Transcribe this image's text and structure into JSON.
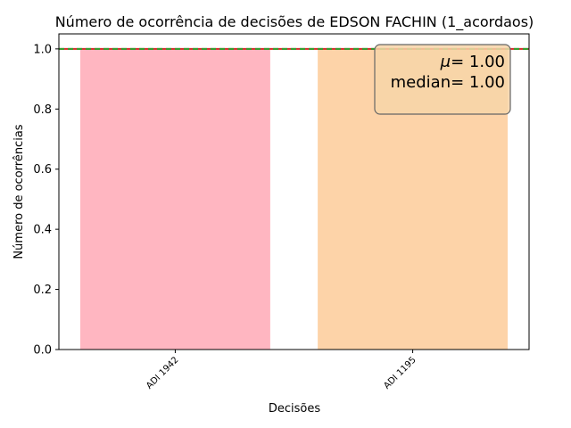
{
  "chart_data": {
    "type": "bar",
    "title": "Número de ocorrência de decisões de EDSON FACHIN (1_acordaos)",
    "xlabel": "Decisões",
    "ylabel": "Número de ocorrências",
    "categories": [
      "ADI 1942",
      "ADI 1195"
    ],
    "values": [
      1,
      1
    ],
    "bar_colors": [
      "#ffb6c1",
      "#fdd3a8"
    ],
    "ylim": [
      0,
      1.05
    ],
    "yticks": [
      "0.0",
      "0.2",
      "0.4",
      "0.6",
      "0.8",
      "1.0"
    ],
    "ytick_values": [
      0,
      0.2,
      0.4,
      0.6,
      0.8,
      1.0
    ],
    "mean": 1.0,
    "median": 1.0,
    "mean_line_color": "#d62728",
    "median_line_color": "#2ca02c",
    "stats_box": {
      "mean_prefix": "μ",
      "mean_value": "= 1.00",
      "median_label": "median",
      "median_value": "= 1.00",
      "background": "#f7d5a8",
      "placement": "top-right"
    },
    "grid": false
  }
}
